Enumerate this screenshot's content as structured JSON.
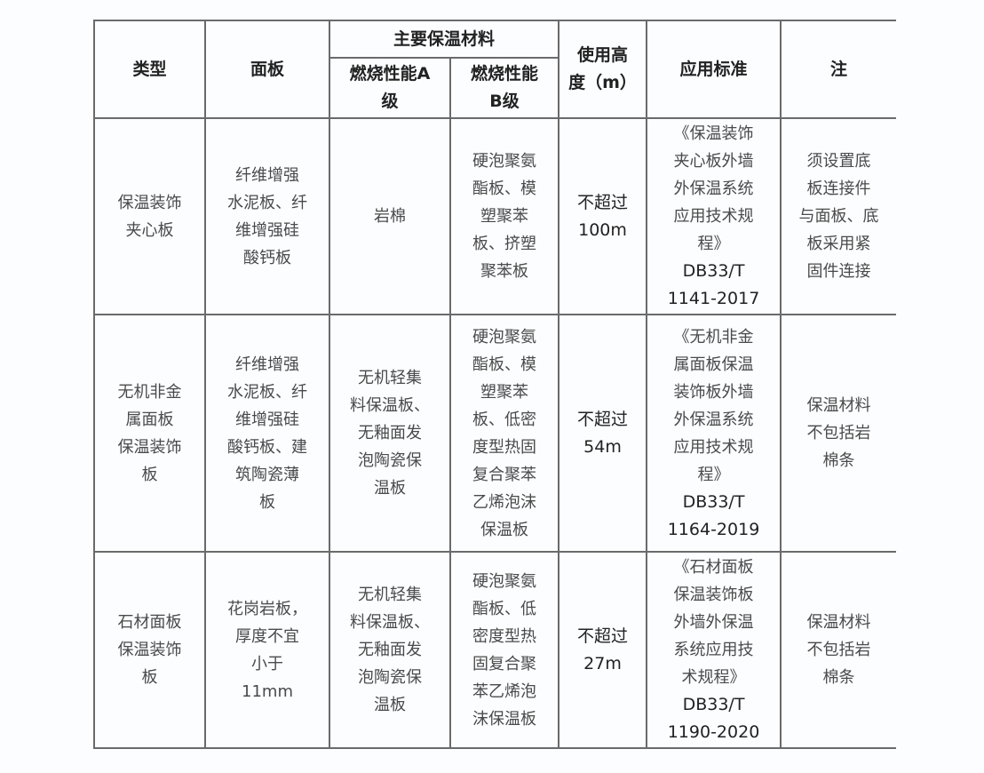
{
  "headers": {
    "type": "类型",
    "panel": "面板",
    "insulation": "主要保温材料",
    "class_a": "燃烧性能A\n级",
    "class_b": "燃烧性能\nB级",
    "height": "使用高\n度（m）",
    "standard": "应用标准",
    "note": "注"
  },
  "rows": [
    {
      "type": "保温装饰\n夹心板",
      "panel": "纤维增强\n水泥板、纤\n维增强硅\n酸钙板",
      "class_a": "岩棉",
      "class_b": "硬泡聚氨\n酯板、模\n塑聚苯\n板、挤塑\n聚苯板",
      "height": "不超过\n100m",
      "standard": "《保温装饰\n夹心板外墙\n外保温系统\n应用技术规\n程》",
      "code": "DB33/T\n1141-2017",
      "note": "须设置底\n板连接件\n与面板、底\n板采用紧\n固件连接"
    },
    {
      "type": "无机非金\n属面板\n保温装饰\n板",
      "panel": "纤维增强\n水泥板、纤\n维增强硅\n酸钙板、建\n筑陶瓷薄\n板",
      "class_a": "无机轻集\n料保温板、\n无釉面发\n泡陶瓷保\n温板",
      "class_b": "硬泡聚氨\n酯板、模\n塑聚苯\n板、低密\n度型热固\n复合聚苯\n乙烯泡沫\n保温板",
      "height": "不超过\n54m",
      "standard": "《无机非金\n属面板保温\n装饰板外墙\n外保温系统\n应用技术规\n程》",
      "code": "DB33/T\n1164-2019",
      "note": "保温材料\n不包括岩\n棉条"
    },
    {
      "type": "石材面板\n保温装饰\n板",
      "panel": "花岗岩板，\n厚度不宜\n小于\n11mm",
      "class_a": "无机轻集\n料保温板、\n无釉面发\n泡陶瓷保\n温板",
      "class_b": "硬泡聚氨\n酯板、低\n密度型热\n固复合聚\n苯乙烯泡\n沫保温板",
      "height": "不超过\n27m",
      "standard": "《石材面板\n保温装饰板\n外墙外保温\n系统应用技\n术规程》",
      "code": "DB33/T\n1190-2020",
      "note": "保温材料\n不包括岩\n棉条"
    }
  ]
}
